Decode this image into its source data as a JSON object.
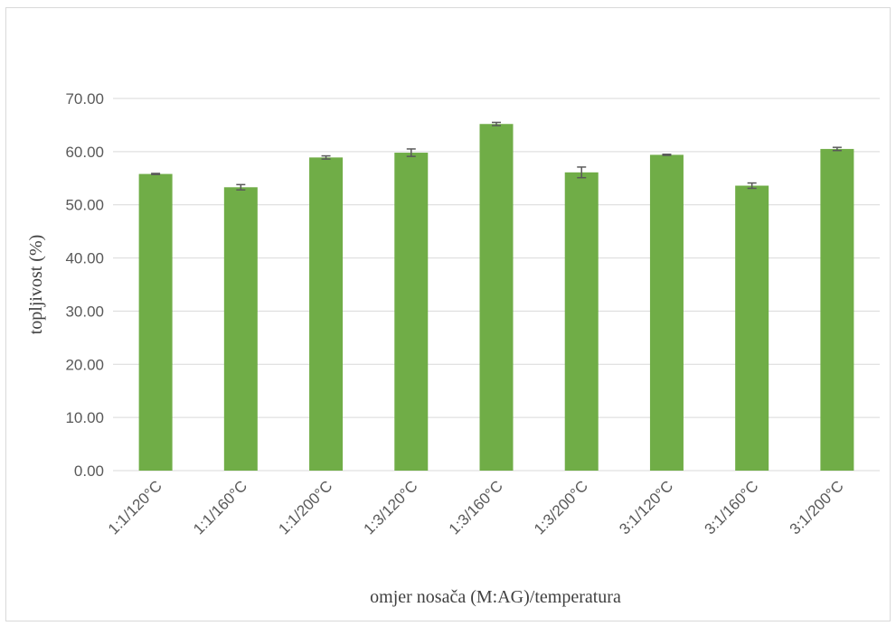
{
  "chart_data": {
    "type": "bar",
    "title": "",
    "xlabel": "omjer nosača (M:AG)/temperatura",
    "ylabel": "topljivost (%)",
    "categories": [
      "1:1/120°C",
      "1:1/160°C",
      "1:1/200°C",
      "1:3/120°C",
      "1:3/160°C",
      "1:3/200°C",
      "3:1/120°C",
      "3:1/160°C",
      "3:1/200°C"
    ],
    "values": [
      55.8,
      53.3,
      58.9,
      59.8,
      65.2,
      56.1,
      59.4,
      53.6,
      60.5
    ],
    "errors": [
      0.1,
      0.5,
      0.3,
      0.7,
      0.3,
      1.0,
      0.1,
      0.5,
      0.3
    ],
    "ylim": [
      0,
      70
    ],
    "yticks": [
      "0.00",
      "10.00",
      "20.00",
      "30.00",
      "40.00",
      "50.00",
      "60.00",
      "70.00"
    ],
    "grid": true,
    "legend": "none",
    "colors": {
      "bar": "#70ad47",
      "grid": "#d9d9d9",
      "error": "#595959"
    }
  }
}
